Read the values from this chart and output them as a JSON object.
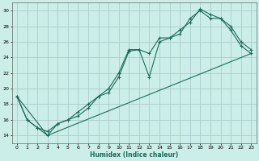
{
  "xlabel": "Humidex (Indice chaleur)",
  "background_color": "#cceee8",
  "grid_color": "#aacccc",
  "line_color": "#1a6b5a",
  "xlim": [
    -0.5,
    23.5
  ],
  "ylim": [
    13,
    31
  ],
  "xticks": [
    0,
    1,
    2,
    3,
    4,
    5,
    6,
    7,
    8,
    9,
    10,
    11,
    12,
    13,
    14,
    15,
    16,
    17,
    18,
    19,
    20,
    21,
    22,
    23
  ],
  "yticks": [
    14,
    16,
    18,
    20,
    22,
    24,
    26,
    28,
    30
  ],
  "line1_x": [
    0,
    1,
    2,
    3,
    4,
    5,
    6,
    7,
    8,
    9,
    10,
    11,
    12,
    13,
    14,
    15,
    16,
    17,
    18,
    19,
    20,
    21,
    22,
    23
  ],
  "line1_y": [
    19.0,
    16.0,
    15.0,
    14.0,
    15.5,
    16.0,
    16.5,
    17.5,
    19.0,
    19.5,
    21.5,
    24.8,
    25.0,
    21.5,
    26.0,
    26.5,
    27.5,
    28.5,
    30.2,
    29.5,
    29.0,
    27.5,
    25.5,
    24.5
  ],
  "line2_x": [
    0,
    1,
    2,
    3,
    4,
    5,
    6,
    7,
    8,
    9,
    10,
    11,
    12,
    13,
    14,
    15,
    16,
    17,
    18,
    19,
    20,
    21,
    22,
    23
  ],
  "line2_y": [
    19.0,
    16.0,
    15.0,
    14.5,
    15.5,
    16.0,
    17.0,
    18.0,
    19.0,
    20.0,
    22.0,
    25.0,
    25.0,
    24.5,
    26.5,
    26.5,
    27.0,
    29.0,
    30.0,
    29.0,
    29.0,
    28.0,
    26.0,
    25.0
  ],
  "line3_x": [
    0,
    3,
    23
  ],
  "line3_y": [
    19.0,
    14.0,
    24.5
  ],
  "marker": "+"
}
